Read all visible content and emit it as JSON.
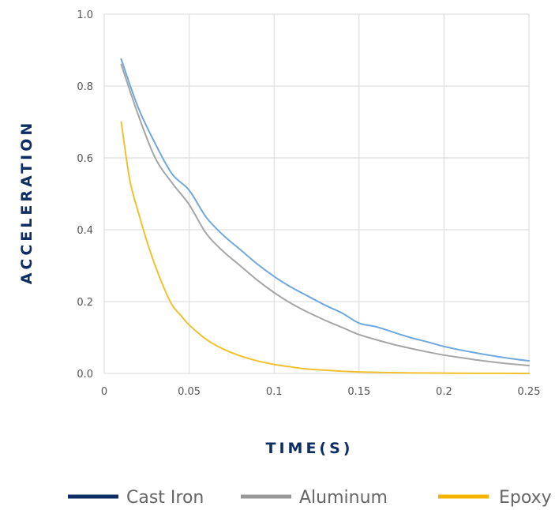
{
  "chart_data": {
    "type": "line",
    "title": "",
    "xlabel": "TIME(S)",
    "ylabel": "ACCELERATION",
    "xlim": [
      0,
      0.25
    ],
    "ylim": [
      0,
      1.0
    ],
    "x_ticks": [
      "0",
      "0.05",
      "0.1",
      "0.15",
      "0.2",
      "0.25"
    ],
    "x_tick_values": [
      0,
      0.05,
      0.1,
      0.15,
      0.2,
      0.25
    ],
    "y_ticks": [
      "0.0",
      "0.2",
      "0.4",
      "0.6",
      "0.8",
      "1.0"
    ],
    "y_tick_values": [
      0,
      0.2,
      0.4,
      0.6,
      0.8,
      1.0
    ],
    "grid": true,
    "legend_position": "bottom",
    "label_color": "#0d2d63",
    "grid_color": "#d9d9d9",
    "series": [
      {
        "name": "Cast Iron",
        "line_color": "#6fa8dc",
        "legend_color": "#0d2d63",
        "x": [
          0.01,
          0.02,
          0.03,
          0.04,
          0.05,
          0.06,
          0.07,
          0.08,
          0.09,
          0.1,
          0.11,
          0.12,
          0.13,
          0.14,
          0.15,
          0.16,
          0.17,
          0.18,
          0.19,
          0.2,
          0.21,
          0.22,
          0.23,
          0.24,
          0.25
        ],
        "y": [
          0.875,
          0.74,
          0.64,
          0.555,
          0.51,
          0.435,
          0.385,
          0.345,
          0.305,
          0.27,
          0.24,
          0.215,
          0.19,
          0.168,
          0.14,
          0.13,
          0.115,
          0.1,
          0.088,
          0.075,
          0.065,
          0.056,
          0.048,
          0.041,
          0.035
        ]
      },
      {
        "name": "Aluminum",
        "line_color": "#a6a6a6",
        "legend_color": "#999999",
        "x": [
          0.01,
          0.02,
          0.03,
          0.04,
          0.05,
          0.06,
          0.07,
          0.08,
          0.09,
          0.1,
          0.11,
          0.12,
          0.13,
          0.14,
          0.15,
          0.16,
          0.17,
          0.18,
          0.19,
          0.2,
          0.21,
          0.22,
          0.23,
          0.24,
          0.25
        ],
        "y": [
          0.86,
          0.72,
          0.6,
          0.53,
          0.47,
          0.39,
          0.34,
          0.3,
          0.26,
          0.225,
          0.195,
          0.17,
          0.148,
          0.128,
          0.108,
          0.094,
          0.081,
          0.07,
          0.06,
          0.051,
          0.044,
          0.037,
          0.031,
          0.026,
          0.022
        ]
      },
      {
        "name": "Epoxy",
        "line_color": "#f2c12e",
        "legend_color": "#f4b400",
        "x": [
          0.01,
          0.015,
          0.02,
          0.025,
          0.03,
          0.035,
          0.04,
          0.045,
          0.05,
          0.06,
          0.07,
          0.08,
          0.09,
          0.1,
          0.11,
          0.12,
          0.13,
          0.14,
          0.15,
          0.16,
          0.18,
          0.2,
          0.22,
          0.25
        ],
        "y": [
          0.7,
          0.54,
          0.45,
          0.37,
          0.3,
          0.24,
          0.19,
          0.162,
          0.135,
          0.095,
          0.068,
          0.049,
          0.035,
          0.025,
          0.018,
          0.012,
          0.009,
          0.006,
          0.004,
          0.003,
          0.0015,
          0.0008,
          0.0004,
          0.0001
        ]
      }
    ]
  }
}
